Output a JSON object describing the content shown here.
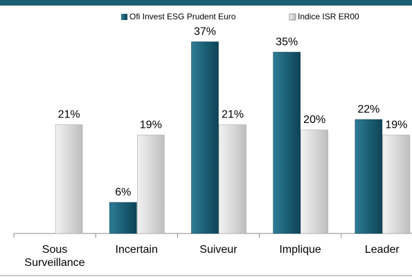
{
  "chart_data": {
    "type": "bar",
    "categories": [
      "Sous Surveillance",
      "Incertain",
      "Suiveur",
      "Implique",
      "Leader"
    ],
    "series": [
      {
        "name": "Ofi Invest ESG Prudent Euro",
        "color": "#1b5f75",
        "values": [
          null,
          6,
          37,
          35,
          22
        ],
        "value_labels": [
          null,
          "6%",
          "37%",
          "35%",
          "22%"
        ]
      },
      {
        "name": "Indice ISR ER00",
        "color": "#d9d9d9",
        "values": [
          21,
          19,
          21,
          20,
          19
        ],
        "value_labels": [
          "21%",
          "19%",
          "21%",
          "20%",
          "19%"
        ]
      }
    ]
  }
}
